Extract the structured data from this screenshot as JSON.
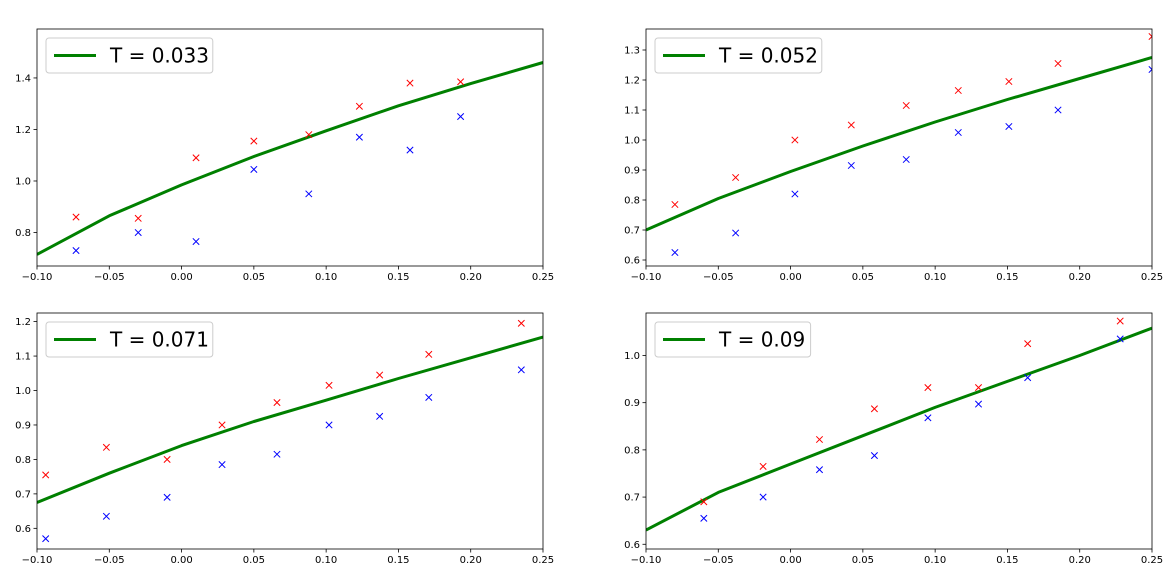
{
  "chart_data": [
    {
      "type": "line",
      "legend": {
        "location": "upper left",
        "entries": [
          "T = 0.033"
        ]
      },
      "xlim": [
        -0.1,
        0.25
      ],
      "ylim": [
        0.67,
        1.59
      ],
      "xticks": [
        "−0.10",
        "−0.05",
        "0.00",
        "0.05",
        "0.10",
        "0.15",
        "0.20",
        "0.25"
      ],
      "yticks": [
        "0.8",
        "1.0",
        "1.2",
        "1.4"
      ],
      "grid": false,
      "colors": {
        "line": "#008000",
        "red": "#ff0000",
        "blue": "#0000ff"
      },
      "series": [
        {
          "name": "T = 0.033",
          "kind": "line",
          "x": [
            -0.1,
            -0.05,
            0.0,
            0.05,
            0.1,
            0.15,
            0.2,
            0.25
          ],
          "y": [
            0.715,
            0.865,
            0.985,
            1.095,
            1.195,
            1.292,
            1.378,
            1.46
          ]
        },
        {
          "kind": "scatter",
          "marker": "x",
          "color": "red",
          "x": [
            -0.073,
            -0.03,
            0.01,
            0.05,
            0.088,
            0.123,
            0.158,
            0.193
          ],
          "y": [
            0.86,
            0.855,
            1.09,
            1.155,
            1.18,
            1.29,
            1.38,
            1.385
          ]
        },
        {
          "kind": "scatter",
          "marker": "x",
          "color": "blue",
          "x": [
            -0.073,
            -0.03,
            0.01,
            0.05,
            0.088,
            0.123,
            0.158,
            0.193
          ],
          "y": [
            0.73,
            0.8,
            0.765,
            1.045,
            0.95,
            1.17,
            1.12,
            1.25
          ]
        }
      ]
    },
    {
      "type": "line",
      "legend": {
        "location": "upper left",
        "entries": [
          "T = 0.052"
        ]
      },
      "xlim": [
        -0.1,
        0.25
      ],
      "ylim": [
        0.58,
        1.37
      ],
      "xticks": [
        "−0.10",
        "−0.05",
        "0.00",
        "0.05",
        "0.10",
        "0.15",
        "0.20",
        "0.25"
      ],
      "yticks": [
        "0.6",
        "0.7",
        "0.8",
        "0.9",
        "1.0",
        "1.1",
        "1.2",
        "1.3"
      ],
      "grid": false,
      "colors": {
        "line": "#008000",
        "red": "#ff0000",
        "blue": "#0000ff"
      },
      "series": [
        {
          "name": "T = 0.052",
          "kind": "line",
          "x": [
            -0.1,
            -0.05,
            0.0,
            0.05,
            0.1,
            0.15,
            0.2,
            0.25
          ],
          "y": [
            0.7,
            0.805,
            0.895,
            0.98,
            1.06,
            1.135,
            1.205,
            1.275
          ]
        },
        {
          "kind": "scatter",
          "marker": "x",
          "color": "red",
          "x": [
            -0.08,
            -0.038,
            0.003,
            0.042,
            0.08,
            0.116,
            0.151,
            0.185,
            0.25
          ],
          "y": [
            0.785,
            0.875,
            1.0,
            1.05,
            1.115,
            1.165,
            1.195,
            1.255,
            1.345
          ]
        },
        {
          "kind": "scatter",
          "marker": "x",
          "color": "blue",
          "x": [
            -0.08,
            -0.038,
            0.003,
            0.042,
            0.08,
            0.116,
            0.151,
            0.185,
            0.25
          ],
          "y": [
            0.625,
            0.69,
            0.82,
            0.915,
            0.935,
            1.025,
            1.045,
            1.1,
            1.235
          ]
        }
      ]
    },
    {
      "type": "line",
      "legend": {
        "location": "upper left",
        "entries": [
          "T = 0.071"
        ]
      },
      "xlim": [
        -0.1,
        0.25
      ],
      "ylim": [
        0.54,
        1.225
      ],
      "xticks": [
        "−0.10",
        "−0.05",
        "0.00",
        "0.05",
        "0.10",
        "0.15",
        "0.20",
        "0.25"
      ],
      "yticks": [
        "0.6",
        "0.7",
        "0.8",
        "0.9",
        "1.0",
        "1.1",
        "1.2"
      ],
      "grid": false,
      "colors": {
        "line": "#008000",
        "red": "#ff0000",
        "blue": "#0000ff"
      },
      "series": [
        {
          "name": "T = 0.071",
          "kind": "line",
          "x": [
            -0.1,
            -0.05,
            0.0,
            0.05,
            0.1,
            0.15,
            0.2,
            0.25
          ],
          "y": [
            0.675,
            0.76,
            0.84,
            0.91,
            0.972,
            1.035,
            1.095,
            1.155
          ]
        },
        {
          "kind": "scatter",
          "marker": "x",
          "color": "red",
          "x": [
            -0.094,
            -0.052,
            -0.01,
            0.028,
            0.066,
            0.102,
            0.137,
            0.171,
            0.235
          ],
          "y": [
            0.755,
            0.835,
            0.8,
            0.9,
            0.965,
            1.015,
            1.045,
            1.105,
            1.195
          ]
        },
        {
          "kind": "scatter",
          "marker": "x",
          "color": "blue",
          "x": [
            -0.094,
            -0.052,
            -0.01,
            0.028,
            0.066,
            0.102,
            0.137,
            0.171,
            0.235
          ],
          "y": [
            0.57,
            0.635,
            0.69,
            0.785,
            0.815,
            0.9,
            0.925,
            0.98,
            1.06
          ]
        }
      ]
    },
    {
      "type": "line",
      "legend": {
        "location": "upper left",
        "entries": [
          "T = 0.09"
        ]
      },
      "xlim": [
        -0.1,
        0.25
      ],
      "ylim": [
        0.59,
        1.09
      ],
      "xticks": [
        "−0.10",
        "−0.05",
        "0.00",
        "0.05",
        "0.10",
        "0.15",
        "0.20",
        "0.25"
      ],
      "yticks": [
        "0.6",
        "0.7",
        "0.8",
        "0.9",
        "1.0"
      ],
      "grid": false,
      "colors": {
        "line": "#008000",
        "red": "#ff0000",
        "blue": "#0000ff"
      },
      "series": [
        {
          "name": "T = 0.09",
          "kind": "line",
          "x": [
            -0.1,
            -0.05,
            0.0,
            0.05,
            0.1,
            0.15,
            0.2,
            0.25
          ],
          "y": [
            0.63,
            0.71,
            0.77,
            0.83,
            0.89,
            0.945,
            1.0,
            1.058
          ]
        },
        {
          "kind": "scatter",
          "marker": "x",
          "color": "red",
          "x": [
            -0.06,
            -0.019,
            0.02,
            0.058,
            0.095,
            0.13,
            0.164,
            0.228
          ],
          "y": [
            0.69,
            0.765,
            0.822,
            0.887,
            0.932,
            0.932,
            1.025,
            1.073
          ]
        },
        {
          "kind": "scatter",
          "marker": "x",
          "color": "blue",
          "x": [
            -0.06,
            -0.019,
            0.02,
            0.058,
            0.095,
            0.13,
            0.164,
            0.228
          ],
          "y": [
            0.655,
            0.7,
            0.758,
            0.788,
            0.868,
            0.897,
            0.953,
            1.035
          ]
        }
      ]
    }
  ]
}
